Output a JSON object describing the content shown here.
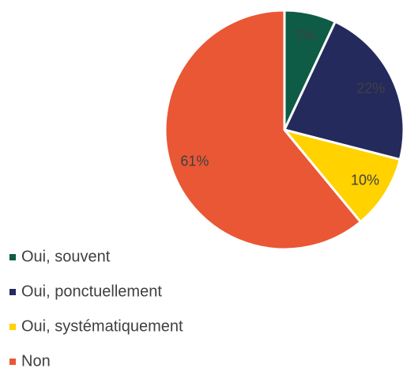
{
  "chart_data": {
    "type": "pie",
    "categories": [
      "Oui, souvent",
      "Oui, ponctuellement",
      "Oui, systématiquement",
      "Non"
    ],
    "values": [
      7,
      22,
      10,
      61
    ],
    "value_labels": [
      "7%",
      "22%",
      "10%",
      "61%"
    ],
    "colors": [
      "#0e5c45",
      "#242a5c",
      "#ffd200",
      "#e95735"
    ],
    "legend": "bottom-left"
  }
}
